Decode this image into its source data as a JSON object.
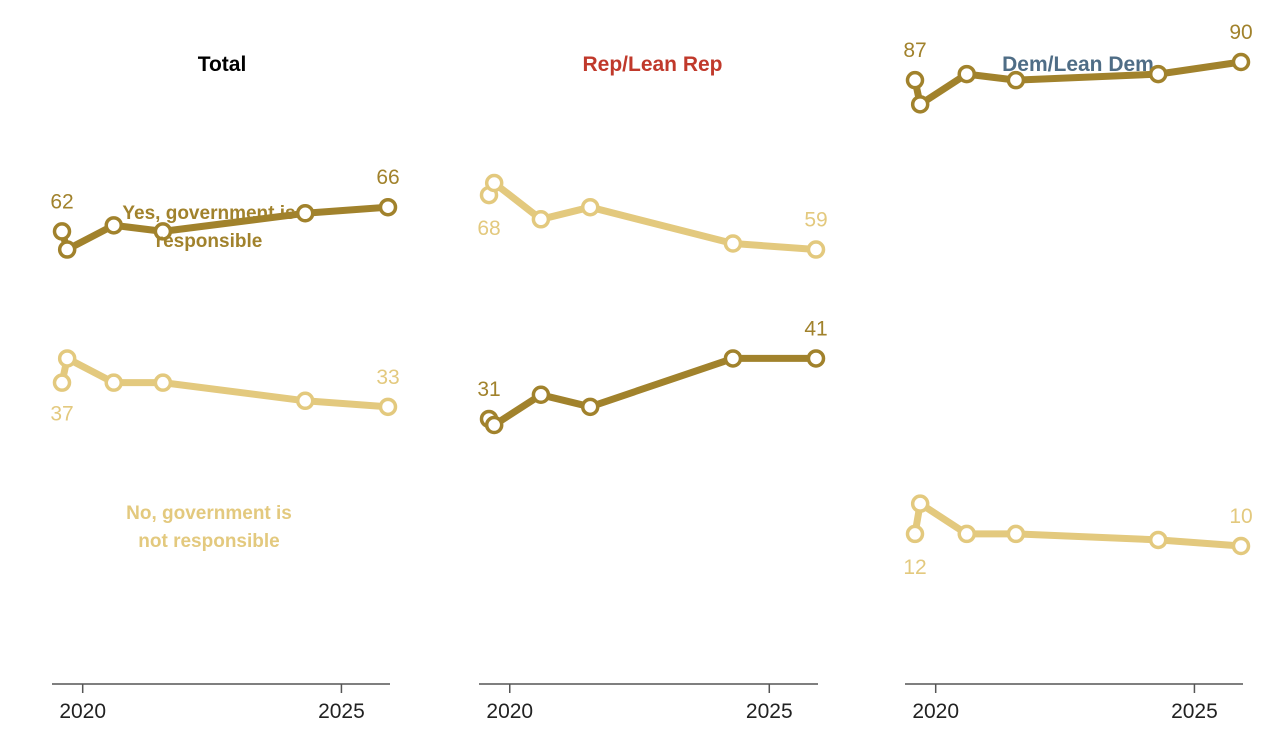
{
  "chart_data": {
    "type": "line",
    "colors": {
      "yes": "#a1822c",
      "no": "#e3c97e",
      "total_title": "#000000",
      "rep_title": "#c0392b",
      "dem_title": "#4f6d86",
      "axis": "#555555"
    },
    "x_ticks": [
      2020,
      2025
    ],
    "xlim": [
      2019.5,
      2026.2
    ],
    "ylim": [
      0,
      100
    ],
    "x": [
      2019.6,
      2019.7,
      2020.6,
      2021.55,
      2024.3,
      2025.9
    ],
    "series_labels": {
      "yes": [
        "Yes, government is",
        "responsible"
      ],
      "no": [
        "No, government is",
        "not responsible"
      ]
    },
    "panels": [
      {
        "title": "Total",
        "series": [
          {
            "name": "Yes, government is responsible",
            "key": "yes",
            "values": [
              62,
              59,
              63,
              62,
              65,
              66
            ],
            "first_label": "62",
            "last_label": "66"
          },
          {
            "name": "No, government is not responsible",
            "key": "no",
            "values": [
              37,
              41,
              37,
              37,
              34,
              33
            ],
            "first_label": "37",
            "last_label": "33"
          }
        ]
      },
      {
        "title": "Rep/Lean Rep",
        "series": [
          {
            "name": "Yes, government is responsible",
            "key": "yes",
            "values": [
              31,
              30,
              35,
              33,
              41,
              41
            ],
            "first_label": "31",
            "last_label": "41"
          },
          {
            "name": "No, government is not responsible",
            "key": "no",
            "values": [
              68,
              70,
              64,
              66,
              60,
              59
            ],
            "first_label": "68",
            "last_label": "59"
          }
        ]
      },
      {
        "title": "Dem/Lean Dem",
        "series": [
          {
            "name": "Yes, government is responsible",
            "key": "yes",
            "values": [
              87,
              83,
              88,
              87,
              88,
              90
            ],
            "first_label": "87",
            "last_label": "90"
          },
          {
            "name": "No, government is not responsible",
            "key": "no",
            "values": [
              12,
              17,
              12,
              12,
              11,
              10
            ],
            "first_label": "12",
            "last_label": "10"
          }
        ]
      }
    ]
  }
}
